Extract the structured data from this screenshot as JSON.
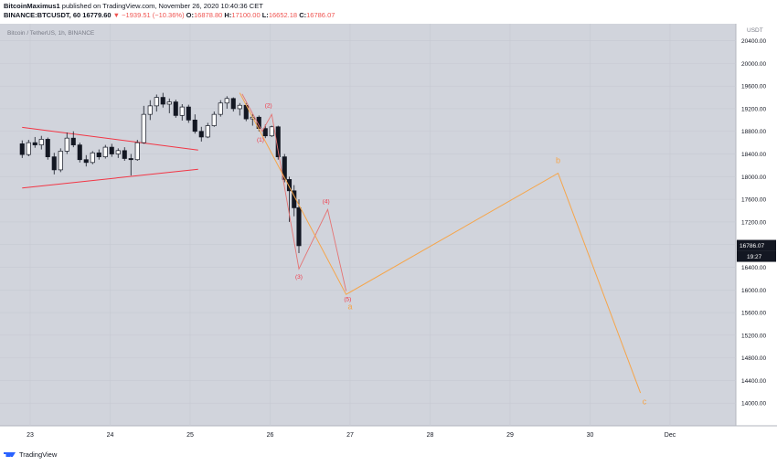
{
  "header": {
    "author": "BitcoinMaximus1",
    "published": "published on TradingView.com, November 26, 2020 10:40:36 CET",
    "symbol": "BINANCE:BTCUSDT, 60",
    "price": "16779.60",
    "change": "▼ −1939.51 (−10.36%)",
    "o_label": "O:",
    "o_value": "16878.80",
    "h_label": "H:",
    "h_value": "17100.00",
    "l_label": "L:",
    "l_value": "16652.18",
    "c_label": "C:",
    "c_value": "16786.07"
  },
  "chart_data": {
    "type": "candlestick",
    "title": "Bitcoin / TetherUS, 1h, BINANCE",
    "currency": "USDT",
    "x_ticks": [
      "23",
      "24",
      "25",
      "26",
      "27",
      "28",
      "29",
      "30",
      "Dec"
    ],
    "y_ticks": [
      "14000.00",
      "14400.00",
      "14800.00",
      "15200.00",
      "15600.00",
      "16000.00",
      "16400.00",
      "16800.00",
      "17200.00",
      "17600.00",
      "18000.00",
      "18400.00",
      "18800.00",
      "19200.00",
      "19600.00",
      "20000.00",
      "20400.00"
    ],
    "ylim": [
      13600,
      20700
    ],
    "last_price": "16786.07",
    "countdown": "19:27",
    "grid": true,
    "colors": {
      "background": "#d1d4dc",
      "up": "#ffffff",
      "down": "#131722",
      "triangle": "#f23645",
      "wave_small": "#e57373",
      "wave_large": "#f6a54a",
      "label_red": "#f23645",
      "label_orange": "#f6a54a"
    },
    "candles": [
      {
        "day": 22.9,
        "o": 18580,
        "h": 18640,
        "l": 18330,
        "c": 18390
      },
      {
        "day": 22.98,
        "o": 18390,
        "h": 18650,
        "l": 18360,
        "c": 18600
      },
      {
        "day": 23.06,
        "o": 18600,
        "h": 18700,
        "l": 18510,
        "c": 18560
      },
      {
        "day": 23.14,
        "o": 18560,
        "h": 18720,
        "l": 18480,
        "c": 18660
      },
      {
        "day": 23.22,
        "o": 18660,
        "h": 18690,
        "l": 18300,
        "c": 18350
      },
      {
        "day": 23.3,
        "o": 18350,
        "h": 18420,
        "l": 18040,
        "c": 18120
      },
      {
        "day": 23.38,
        "o": 18120,
        "h": 18500,
        "l": 18080,
        "c": 18450
      },
      {
        "day": 23.46,
        "o": 18450,
        "h": 18780,
        "l": 18400,
        "c": 18680
      },
      {
        "day": 23.54,
        "o": 18680,
        "h": 18800,
        "l": 18520,
        "c": 18560
      },
      {
        "day": 23.62,
        "o": 18560,
        "h": 18600,
        "l": 18250,
        "c": 18300
      },
      {
        "day": 23.7,
        "o": 18300,
        "h": 18380,
        "l": 18180,
        "c": 18250
      },
      {
        "day": 23.78,
        "o": 18250,
        "h": 18450,
        "l": 18220,
        "c": 18420
      },
      {
        "day": 23.86,
        "o": 18420,
        "h": 18480,
        "l": 18300,
        "c": 18350
      },
      {
        "day": 23.94,
        "o": 18350,
        "h": 18560,
        "l": 18320,
        "c": 18520
      },
      {
        "day": 24.02,
        "o": 18520,
        "h": 18580,
        "l": 18350,
        "c": 18400
      },
      {
        "day": 24.1,
        "o": 18400,
        "h": 18500,
        "l": 18330,
        "c": 18460
      },
      {
        "day": 24.18,
        "o": 18460,
        "h": 18520,
        "l": 18280,
        "c": 18320
      },
      {
        "day": 24.26,
        "o": 18320,
        "h": 18400,
        "l": 18020,
        "c": 18300
      },
      {
        "day": 24.34,
        "o": 18300,
        "h": 18650,
        "l": 18280,
        "c": 18600
      },
      {
        "day": 24.42,
        "o": 18600,
        "h": 19250,
        "l": 18580,
        "c": 19100
      },
      {
        "day": 24.5,
        "o": 19100,
        "h": 19350,
        "l": 19000,
        "c": 19250
      },
      {
        "day": 24.58,
        "o": 19250,
        "h": 19450,
        "l": 19150,
        "c": 19400
      },
      {
        "day": 24.66,
        "o": 19400,
        "h": 19480,
        "l": 19220,
        "c": 19280
      },
      {
        "day": 24.74,
        "o": 19280,
        "h": 19380,
        "l": 19120,
        "c": 19320
      },
      {
        "day": 24.82,
        "o": 19320,
        "h": 19360,
        "l": 19040,
        "c": 19080
      },
      {
        "day": 24.9,
        "o": 19080,
        "h": 19280,
        "l": 18990,
        "c": 19230
      },
      {
        "day": 24.98,
        "o": 19230,
        "h": 19270,
        "l": 18950,
        "c": 19000
      },
      {
        "day": 25.06,
        "o": 19000,
        "h": 19100,
        "l": 18760,
        "c": 18800
      },
      {
        "day": 25.14,
        "o": 18800,
        "h": 18880,
        "l": 18620,
        "c": 18700
      },
      {
        "day": 25.22,
        "o": 18700,
        "h": 18950,
        "l": 18680,
        "c": 18900
      },
      {
        "day": 25.3,
        "o": 18900,
        "h": 19150,
        "l": 18880,
        "c": 19100
      },
      {
        "day": 25.38,
        "o": 19100,
        "h": 19350,
        "l": 19060,
        "c": 19300
      },
      {
        "day": 25.46,
        "o": 19300,
        "h": 19420,
        "l": 19200,
        "c": 19380
      },
      {
        "day": 25.54,
        "o": 19380,
        "h": 19400,
        "l": 19150,
        "c": 19200
      },
      {
        "day": 25.62,
        "o": 19200,
        "h": 19300,
        "l": 19080,
        "c": 19260
      },
      {
        "day": 25.7,
        "o": 19260,
        "h": 19300,
        "l": 18980,
        "c": 19020
      },
      {
        "day": 25.78,
        "o": 19020,
        "h": 19100,
        "l": 18900,
        "c": 19050
      },
      {
        "day": 25.86,
        "o": 19050,
        "h": 19080,
        "l": 18800,
        "c": 18850
      },
      {
        "day": 25.94,
        "o": 18850,
        "h": 18920,
        "l": 18680,
        "c": 18720
      },
      {
        "day": 26.02,
        "o": 18720,
        "h": 18900,
        "l": 18700,
        "c": 18880
      },
      {
        "day": 26.1,
        "o": 18880,
        "h": 18900,
        "l": 18300,
        "c": 18350
      },
      {
        "day": 26.18,
        "o": 18350,
        "h": 18400,
        "l": 17900,
        "c": 17950
      },
      {
        "day": 26.24,
        "o": 17950,
        "h": 18000,
        "l": 17200,
        "c": 17750
      },
      {
        "day": 26.3,
        "o": 17750,
        "h": 17850,
        "l": 17300,
        "c": 17450
      },
      {
        "day": 26.36,
        "o": 17450,
        "h": 17600,
        "l": 16650,
        "c": 16780
      }
    ],
    "triangle": {
      "upper": [
        {
          "day": 22.9,
          "price": 18870
        },
        {
          "day": 25.1,
          "price": 18470
        }
      ],
      "lower": [
        {
          "day": 22.9,
          "price": 17800
        },
        {
          "day": 25.1,
          "price": 18130
        }
      ]
    },
    "wave_small": {
      "points": [
        {
          "day": 25.65,
          "price": 19460
        },
        {
          "day": 25.9,
          "price": 18800
        },
        {
          "day": 26.02,
          "price": 19100
        },
        {
          "day": 26.36,
          "price": 16370
        },
        {
          "day": 26.72,
          "price": 17420
        },
        {
          "day": 26.95,
          "price": 15980
        }
      ],
      "labels": [
        {
          "text": "(1)",
          "day": 25.88,
          "price": 18620
        },
        {
          "text": "(2)",
          "day": 25.98,
          "price": 19220
        },
        {
          "text": "(3)",
          "day": 26.36,
          "price": 16200
        },
        {
          "text": "(4)",
          "day": 26.7,
          "price": 17530
        },
        {
          "text": "(5)",
          "day": 26.97,
          "price": 15800
        }
      ]
    },
    "wave_large": {
      "points": [
        {
          "day": 25.62,
          "price": 19480
        },
        {
          "day": 26.95,
          "price": 15920
        },
        {
          "day": 29.6,
          "price": 18060
        },
        {
          "day": 30.63,
          "price": 14180
        }
      ],
      "labels": [
        {
          "text": "a",
          "day": 27.0,
          "price": 15660
        },
        {
          "text": "b",
          "day": 29.6,
          "price": 18240
        },
        {
          "text": "c",
          "day": 30.68,
          "price": 13980
        }
      ]
    }
  },
  "watermark": "TradingView"
}
